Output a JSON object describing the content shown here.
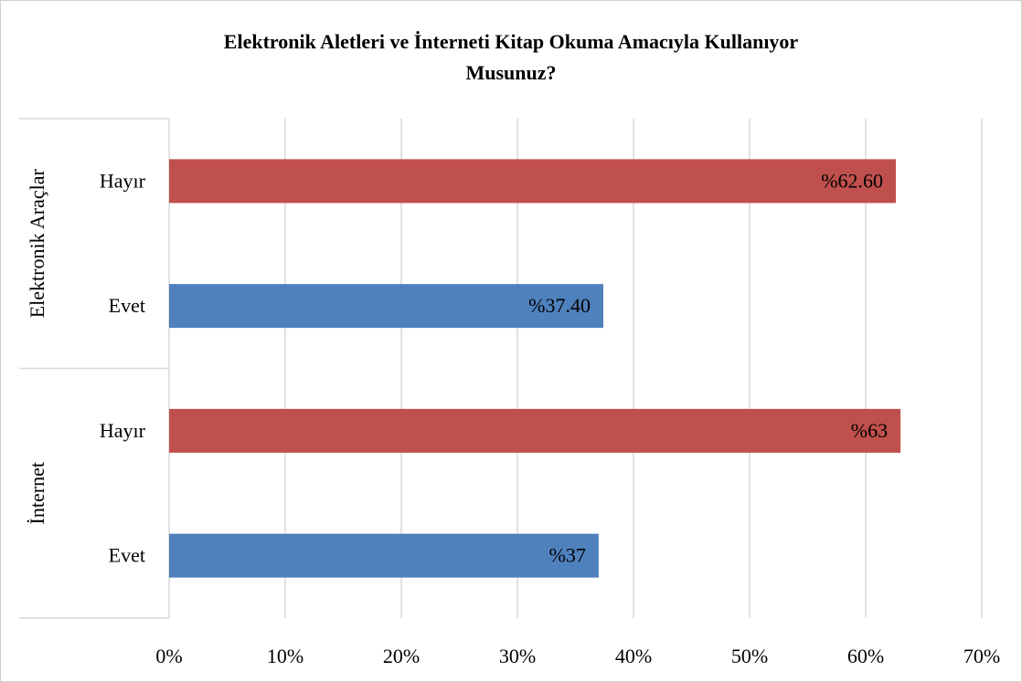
{
  "chart_data": {
    "type": "bar",
    "orientation": "horizontal",
    "title_lines": [
      "Elektronik Aletleri ve İnterneti Kitap Okuma Amacıyla Kullanıyor",
      "Musunuz?"
    ],
    "groups": [
      {
        "name": "Elektronik Araçlar",
        "bars": [
          {
            "category": "Hayır",
            "value": 62.6,
            "label": "%62.60",
            "color": "#c0504d"
          },
          {
            "category": "Evet",
            "value": 37.4,
            "label": "%37.40",
            "color": "#4f81bd"
          }
        ]
      },
      {
        "name": "İnternet",
        "bars": [
          {
            "category": "Hayır",
            "value": 63,
            "label": "%63",
            "color": "#c0504d"
          },
          {
            "category": "Evet",
            "value": 37,
            "label": "%37",
            "color": "#4f81bd"
          }
        ]
      }
    ],
    "xlim": [
      0,
      70
    ],
    "x_ticks": [
      "0%",
      "10%",
      "20%",
      "30%",
      "40%",
      "50%",
      "60%",
      "70%"
    ],
    "grid": true,
    "legend": "none"
  }
}
